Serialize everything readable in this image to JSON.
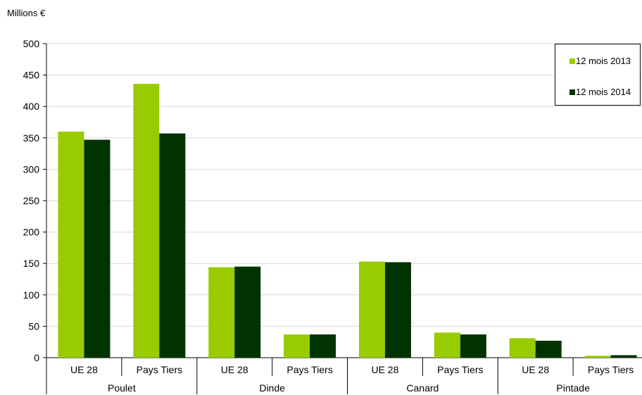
{
  "chart_data": {
    "type": "bar",
    "ylabel": "Millions €",
    "ylim": [
      0,
      500
    ],
    "yticks": [
      0,
      50,
      100,
      150,
      200,
      250,
      300,
      350,
      400,
      450,
      500
    ],
    "groups": [
      {
        "label": "Poulet",
        "categories": [
          "UE 28",
          "Pays Tiers"
        ]
      },
      {
        "label": "Dinde",
        "categories": [
          "UE 28",
          "Pays Tiers"
        ]
      },
      {
        "label": "Canard",
        "categories": [
          "UE 28",
          "Pays Tiers"
        ]
      },
      {
        "label": "Pintade",
        "categories": [
          "UE 28",
          "Pays Tiers"
        ]
      }
    ],
    "categories": [
      "UE 28",
      "Pays Tiers",
      "UE 28",
      "Pays Tiers",
      "UE 28",
      "Pays Tiers",
      "UE 28",
      "Pays Tiers"
    ],
    "series": [
      {
        "name": "12 mois 2013",
        "color": "#99cc00",
        "values": [
          360,
          436,
          144,
          37,
          153,
          40,
          31,
          3
        ]
      },
      {
        "name": "12 mois 2014",
        "color": "#003300",
        "values": [
          347,
          357,
          145,
          37,
          152,
          37,
          27,
          4
        ]
      }
    ],
    "grid": true,
    "legend_position": "top-right"
  }
}
